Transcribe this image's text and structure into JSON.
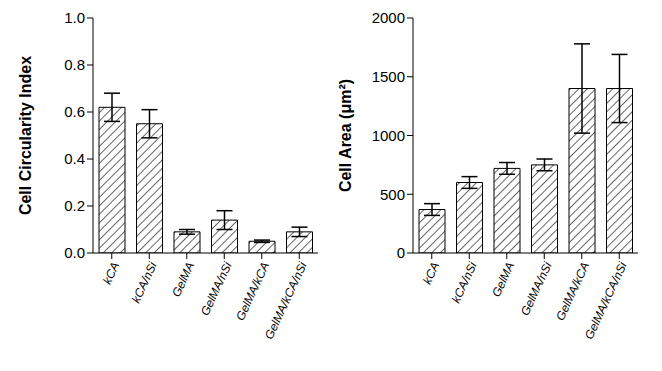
{
  "chart_data": [
    {
      "type": "bar",
      "ylabel": "Cell Circularity Index",
      "categories": [
        "kCA",
        "kCA/nSi",
        "GelMA",
        "GelMA/nSi",
        "GelMA/kCA",
        "GelMA/kCA/nSi"
      ],
      "values": [
        0.62,
        0.55,
        0.09,
        0.14,
        0.05,
        0.09
      ],
      "errors": [
        0.06,
        0.06,
        0.01,
        0.04,
        0.005,
        0.02
      ],
      "color": "#000000",
      "grid": false,
      "ylim": [
        0,
        1
      ],
      "yticks": [
        {
          "value": 0,
          "label": "0.0"
        },
        0.2,
        0.4,
        0.6,
        0.8,
        {
          "value": 1,
          "label": "1.0"
        }
      ]
    },
    {
      "type": "bar",
      "ylabel": "Cell Area (μm²)",
      "categories": [
        "kCA",
        "kCA/nSi",
        "GelMA",
        "GelMA/nSi",
        "GelMA/kCA",
        "GelMA/kCA/nSi"
      ],
      "values": [
        370,
        600,
        720,
        750,
        1400,
        1400
      ],
      "errors": [
        50,
        50,
        50,
        50,
        380,
        290
      ],
      "color": "#000000",
      "grid": false,
      "ylim": [
        0,
        2000
      ],
      "yticks": [
        0,
        500,
        1000,
        1500,
        2000
      ]
    }
  ]
}
